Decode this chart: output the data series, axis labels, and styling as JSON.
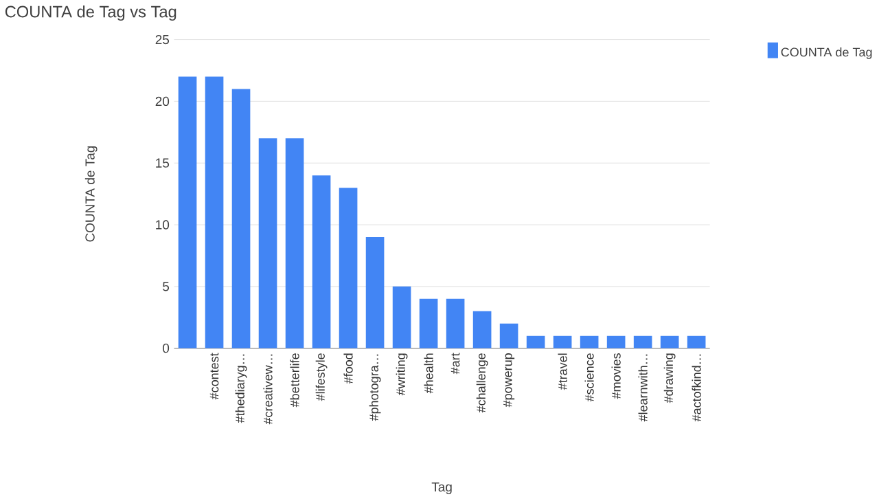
{
  "chart_data": {
    "type": "bar",
    "title": "COUNTA de Tag vs Tag",
    "xlabel": "Tag",
    "ylabel": "COUNTA de Tag",
    "categories": [
      null,
      "#contest",
      "#thediaryg…",
      "#creativew…",
      "#betterlife",
      "#lifestyle",
      "#food",
      "#photogra…",
      "#writing",
      "#health",
      "#art",
      "#challenge",
      "#powerup",
      null,
      "#travel",
      "#science",
      "#movies",
      "#learnwith…",
      "#drawing",
      "#actofkind…"
    ],
    "series": [
      {
        "name": "COUNTA de Tag",
        "color": "#4285f4",
        "values": [
          22,
          22,
          21,
          17,
          17,
          14,
          13,
          9,
          5,
          4,
          4,
          3,
          2,
          1,
          1,
          1,
          1,
          1,
          1,
          1
        ]
      }
    ],
    "ylim": [
      0,
      25
    ],
    "yticks": [
      0,
      5,
      10,
      15,
      20,
      25
    ],
    "grid": "y",
    "legend": "top right"
  }
}
